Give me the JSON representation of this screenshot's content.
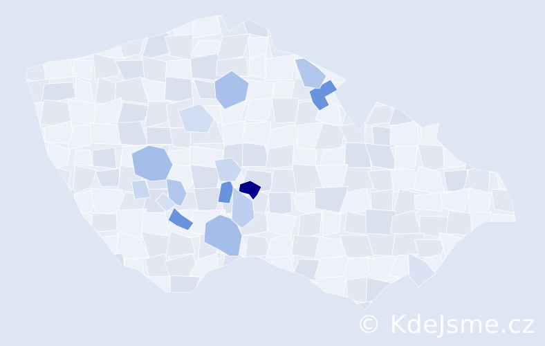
{
  "watermark": "© KdeJsme.cz",
  "colors": {
    "background": "#dde6f2",
    "base_fill": "#e8ecf5",
    "border": "#ffffff",
    "scale_low": "#eef1f8",
    "scale_high": "#00008b"
  },
  "regions": [
    {
      "level": 1.0
    },
    {
      "level": 0.55
    },
    {
      "level": 0.55
    },
    {
      "level": 0.55
    },
    {
      "level": 0.3
    },
    {
      "level": 0.3
    },
    {
      "level": 0.28
    },
    {
      "level": 0.25
    },
    {
      "level": 0.25
    },
    {
      "level": 0.2
    },
    {
      "level": 0.15
    },
    {
      "level": 0.15
    },
    {
      "level": 0.12
    },
    {
      "level": 0.1
    },
    {
      "level": 0.08
    }
  ]
}
